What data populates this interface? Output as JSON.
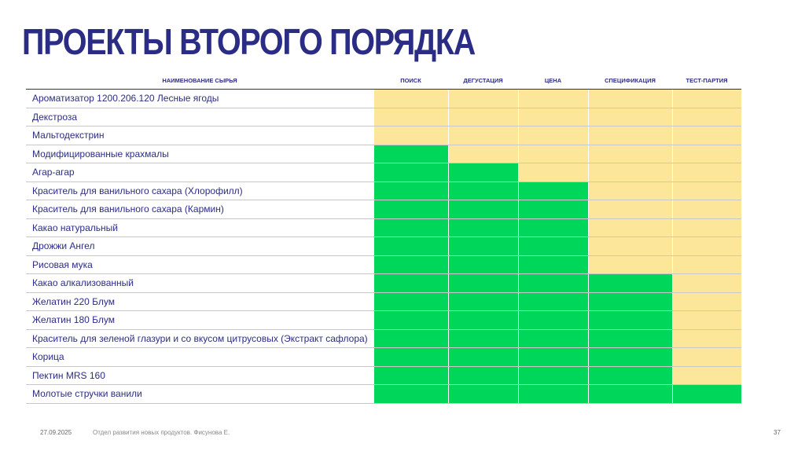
{
  "title": "ПРОЕКТЫ ВТОРОГО ПОРЯДКА",
  "table": {
    "name_header": "НАИМЕНОВАНИЕ СЫРЬЯ",
    "stages": [
      "ПОИСК",
      "ДЕГУСТАЦИЯ",
      "ЦЕНА",
      "СПЕЦИФИКАЦИЯ",
      "ТЕСТ-ПАРТИЯ"
    ],
    "rows": [
      {
        "name": "Ароматизатор 1200.206.120 Лесные ягоды",
        "completed_stages": 0
      },
      {
        "name": "Декстроза",
        "completed_stages": 0
      },
      {
        "name": "Мальтодекстрин",
        "completed_stages": 0
      },
      {
        "name": "Модифицированные крахмалы",
        "completed_stages": 1
      },
      {
        "name": "Агар-агар",
        "completed_stages": 2
      },
      {
        "name": "Краситель для ванильного сахара (Хлорофилл)",
        "completed_stages": 3
      },
      {
        "name": "Краситель для ванильного сахара (Кармин)",
        "completed_stages": 3
      },
      {
        "name": "Какао натуральный",
        "completed_stages": 3
      },
      {
        "name": "Дрожжи Ангел",
        "completed_stages": 3
      },
      {
        "name": "Рисовая мука",
        "completed_stages": 3
      },
      {
        "name": "Какао алкализованный",
        "completed_stages": 4
      },
      {
        "name": "Желатин 220 Блум",
        "completed_stages": 4
      },
      {
        "name": "Желатин 180 Блум",
        "completed_stages": 4
      },
      {
        "name": "Краситель для зеленой глазури и со вкусом цитрусовых (Экстракт сафлора)",
        "completed_stages": 4
      },
      {
        "name": "Корица",
        "completed_stages": 4
      },
      {
        "name": "Пектин MRS 160",
        "completed_stages": 4
      },
      {
        "name": "Молотые стручки ванили",
        "completed_stages": 5
      }
    ]
  },
  "colors": {
    "title": "#2b2d84",
    "stage_done": "#00d65a",
    "stage_pending": "#fce69a"
  },
  "footer": {
    "date": "27.09.2025",
    "department": "Отдел развития новых продуктов. Фисунова Е.",
    "page_number": "37"
  }
}
